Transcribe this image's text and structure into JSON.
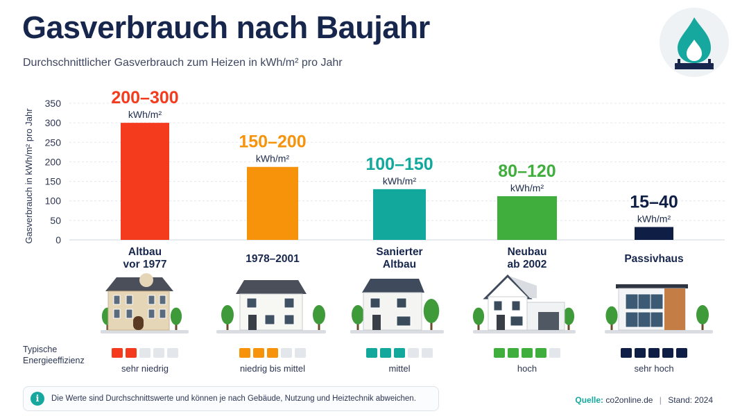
{
  "header": {
    "title": "Gasverbrauch nach Baujahr",
    "subtitle": "Durchschnittlicher Gasverbrauch zum Heizen in kWh/m² pro Jahr"
  },
  "logo": {
    "icon": "gas-flame-icon",
    "color": "#16a79e"
  },
  "chart_data": {
    "type": "bar",
    "ylabel": "Gasverbrauch in kWh/m² pro Jahr",
    "ylim": [
      0,
      350
    ],
    "yticks": [
      0,
      50,
      100,
      150,
      200,
      250,
      300,
      350
    ],
    "grid": true,
    "categories": [
      [
        "Altbau",
        "vor 1977"
      ],
      [
        "1978–2001"
      ],
      [
        "Sanierter",
        "Altbau"
      ],
      [
        "Neubau",
        "ab 2002"
      ],
      [
        "Passivhaus"
      ]
    ],
    "values": [
      300,
      187,
      130,
      112,
      33
    ],
    "value_labels": [
      "200–300",
      "150–200",
      "100–150",
      "80–120",
      "15–40"
    ],
    "unit_label": "kWh/m²",
    "colors": [
      "#f53b1e",
      "#f7930a",
      "#12a89c",
      "#3fae3c",
      "#0f1e44"
    ]
  },
  "efficiency": {
    "label": [
      "Typische",
      "Energieeffizienz"
    ],
    "items": [
      {
        "label": "sehr niedrig",
        "level": 2,
        "color": "#f53b1e"
      },
      {
        "label": "niedrig bis mittel",
        "level": 3,
        "color": "#f7930a"
      },
      {
        "label": "mittel",
        "level": 3,
        "color": "#12a89c"
      },
      {
        "label": "hoch",
        "level": 4,
        "color": "#3fae3c"
      },
      {
        "label": "sehr hoch",
        "level": 5,
        "color": "#0f1e44"
      }
    ],
    "max_level": 5
  },
  "houses": [
    "historic-villa-icon",
    "gable-house-icon",
    "renovated-house-icon",
    "modern-house-icon",
    "passive-house-icon"
  ],
  "note": {
    "icon": "info-icon",
    "symbol": "i",
    "text": "Die Werte sind Durchschnittswerte und können je nach Gebäude, Nutzung und Heiztechnik abweichen."
  },
  "source": {
    "label": "Quelle:",
    "value": "co2online.de",
    "separator": "|",
    "date": "Stand: 2024"
  }
}
